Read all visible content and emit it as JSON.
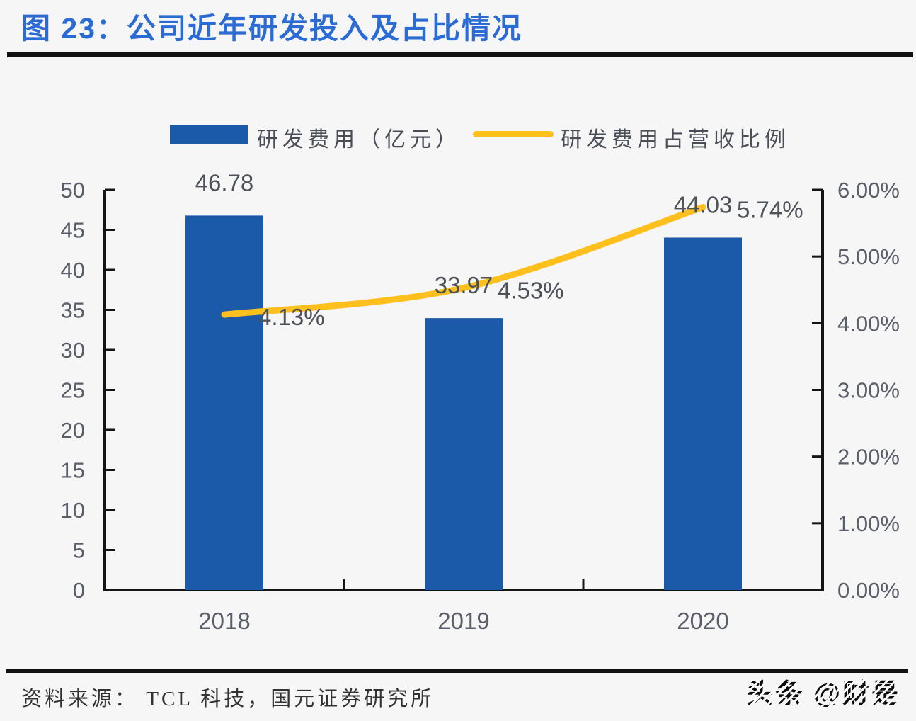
{
  "title": "图 23：公司近年研发投入及占比情况",
  "legend": {
    "bar_label": "研发费用（亿元）",
    "line_label": "研发费用占营收比例"
  },
  "source": "资料来源： TCL 科技，国元证券研究所",
  "watermark": "头条 @财是",
  "colors": {
    "bar": "#1b59a9",
    "line": "#ffc01e",
    "title": "#2b6bd4",
    "axis": "#141414",
    "tick_label": "#5a5e68",
    "data_label": "#4d5158"
  },
  "chart_data": {
    "type": "bar",
    "subtype": "combo-bar-line",
    "title": "公司近年研发投入及占比情况",
    "categories": [
      "2018",
      "2019",
      "2020"
    ],
    "series": [
      {
        "name": "研发费用（亿元）",
        "type": "bar",
        "axis": "left",
        "values": [
          46.78,
          33.97,
          44.03
        ],
        "labels": [
          "46.78",
          "33.97",
          "44.03"
        ]
      },
      {
        "name": "研发费用占营收比例",
        "type": "line",
        "axis": "right",
        "values": [
          4.13,
          4.53,
          5.74
        ],
        "labels": [
          "4.13%",
          "4.53%",
          "5.74%"
        ]
      }
    ],
    "left_axis": {
      "min": 0,
      "max": 50,
      "step": 5,
      "ticks": [
        "0",
        "5",
        "10",
        "15",
        "20",
        "25",
        "30",
        "35",
        "40",
        "45",
        "50"
      ]
    },
    "right_axis": {
      "min": 0,
      "max": 6,
      "step": 1,
      "ticks": [
        "0.00%",
        "1.00%",
        "2.00%",
        "3.00%",
        "4.00%",
        "5.00%",
        "6.00%"
      ]
    },
    "grid": false,
    "legend_position": "top"
  }
}
